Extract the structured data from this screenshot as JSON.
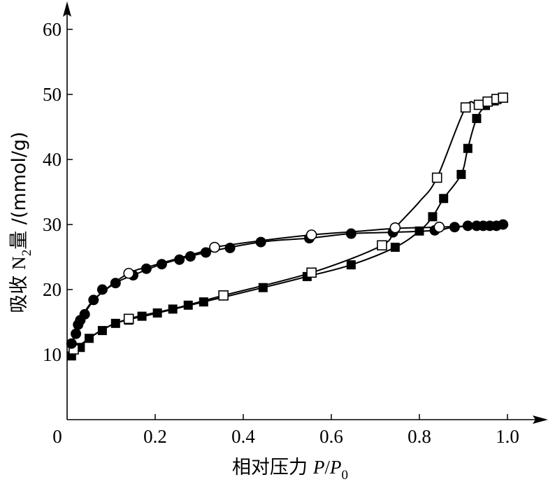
{
  "chart_data": {
    "type": "scatter",
    "x_axis": {
      "label_main": "相对压力",
      "label_math": "P",
      "label_sep": "/",
      "label_math2": "P",
      "label_sub": "0",
      "range": [
        0,
        1.08
      ],
      "ticks": [
        0,
        0.2,
        0.4,
        0.6,
        0.8,
        1.0
      ],
      "tick_labels": [
        "0",
        "0.2",
        "0.4",
        "0.6",
        "0.8",
        "1.0"
      ]
    },
    "y_axis": {
      "label_main": "吸收",
      "label_n": "N",
      "label_sub": "2",
      "label_rest": "量 /(mmol/g)",
      "range": [
        0,
        64
      ],
      "ticks": [
        10,
        20,
        30,
        40,
        50,
        60
      ],
      "tick_labels": [
        "10",
        "20",
        "30",
        "40",
        "50",
        "60"
      ]
    },
    "grid": false,
    "series": [
      {
        "marker": "filled-circle",
        "color": "#000000",
        "points": [
          [
            0.01,
            11.7
          ],
          [
            0.02,
            13.2
          ],
          [
            0.025,
            14.6
          ],
          [
            0.03,
            15.3
          ],
          [
            0.04,
            16.2
          ],
          [
            0.06,
            18.4
          ],
          [
            0.08,
            20.0
          ],
          [
            0.11,
            21.0
          ],
          [
            0.15,
            22.2
          ],
          [
            0.18,
            23.2
          ],
          [
            0.215,
            23.9
          ],
          [
            0.255,
            24.6
          ],
          [
            0.28,
            25.1
          ],
          [
            0.315,
            25.7
          ],
          [
            0.37,
            26.4
          ],
          [
            0.44,
            27.3
          ],
          [
            0.55,
            27.9
          ],
          [
            0.645,
            28.6
          ],
          [
            0.74,
            28.8
          ],
          [
            0.835,
            29.1
          ],
          [
            0.88,
            29.6
          ],
          [
            0.91,
            29.8
          ],
          [
            0.93,
            29.8
          ],
          [
            0.945,
            29.8
          ],
          [
            0.96,
            29.8
          ],
          [
            0.975,
            29.8
          ],
          [
            0.99,
            30.0
          ]
        ]
      },
      {
        "marker": "open-circle",
        "color": "#000000",
        "points": [
          [
            0.14,
            22.5
          ],
          [
            0.335,
            26.5
          ],
          [
            0.555,
            28.4
          ],
          [
            0.745,
            29.5
          ],
          [
            0.845,
            29.6
          ]
        ]
      },
      {
        "marker": "filled-square",
        "color": "#000000",
        "points": [
          [
            0.01,
            9.8
          ],
          [
            0.03,
            11.1
          ],
          [
            0.05,
            12.5
          ],
          [
            0.08,
            13.7
          ],
          [
            0.11,
            14.8
          ],
          [
            0.14,
            15.3
          ],
          [
            0.17,
            15.9
          ],
          [
            0.205,
            16.4
          ],
          [
            0.24,
            17.0
          ],
          [
            0.275,
            17.6
          ],
          [
            0.31,
            18.1
          ],
          [
            0.445,
            20.3
          ],
          [
            0.545,
            22.0
          ],
          [
            0.645,
            23.8
          ],
          [
            0.745,
            26.5
          ],
          [
            0.8,
            29.0
          ],
          [
            0.83,
            31.2
          ],
          [
            0.855,
            34.0
          ],
          [
            0.895,
            37.7
          ],
          [
            0.91,
            41.7
          ],
          [
            0.93,
            46.3
          ],
          [
            0.95,
            48.3
          ],
          [
            0.97,
            49.0
          ]
        ]
      },
      {
        "marker": "open-square",
        "color": "#000000",
        "points": [
          [
            0.015,
            10.8
          ],
          [
            0.14,
            15.5
          ],
          [
            0.355,
            19.1
          ],
          [
            0.555,
            22.6
          ],
          [
            0.715,
            26.8
          ],
          [
            0.84,
            37.2
          ],
          [
            0.905,
            48.0
          ],
          [
            0.935,
            48.4
          ],
          [
            0.955,
            48.9
          ],
          [
            0.975,
            49.3
          ],
          [
            0.99,
            49.5
          ]
        ]
      }
    ],
    "curves": [
      {
        "color": "#000000",
        "points": [
          [
            0.01,
            11.7
          ],
          [
            0.02,
            13.2
          ],
          [
            0.03,
            15.0
          ],
          [
            0.05,
            17.4
          ],
          [
            0.08,
            19.6
          ],
          [
            0.14,
            22.5
          ],
          [
            0.2,
            23.8
          ],
          [
            0.3,
            25.7
          ],
          [
            0.335,
            26.5
          ],
          [
            0.45,
            27.6
          ],
          [
            0.555,
            28.4
          ],
          [
            0.65,
            28.9
          ],
          [
            0.745,
            29.4
          ],
          [
            0.845,
            29.6
          ],
          [
            1.0,
            30.0
          ]
        ]
      },
      {
        "color": "#000000",
        "points": [
          [
            0.01,
            11.7
          ],
          [
            0.03,
            15.3
          ],
          [
            0.06,
            18.4
          ],
          [
            0.11,
            21.0
          ],
          [
            0.15,
            22.2
          ],
          [
            0.215,
            23.9
          ],
          [
            0.315,
            25.7
          ],
          [
            0.44,
            27.3
          ],
          [
            0.55,
            27.9
          ],
          [
            0.645,
            28.6
          ],
          [
            0.74,
            28.8
          ],
          [
            0.84,
            29.1
          ],
          [
            0.88,
            29.6
          ],
          [
            0.99,
            30.0
          ]
        ]
      },
      {
        "color": "#000000",
        "points": [
          [
            0.01,
            9.8
          ],
          [
            0.05,
            12.5
          ],
          [
            0.11,
            14.8
          ],
          [
            0.2,
            16.3
          ],
          [
            0.31,
            18.1
          ],
          [
            0.445,
            20.3
          ],
          [
            0.545,
            22.0
          ],
          [
            0.645,
            23.8
          ],
          [
            0.745,
            26.5
          ],
          [
            0.8,
            29.0
          ],
          [
            0.83,
            31.2
          ],
          [
            0.855,
            34.0
          ],
          [
            0.895,
            37.7
          ],
          [
            0.91,
            41.7
          ],
          [
            0.93,
            46.3
          ],
          [
            0.955,
            48.5
          ],
          [
            0.99,
            49.5
          ]
        ]
      },
      {
        "color": "#000000",
        "points": [
          [
            0.015,
            10.8
          ],
          [
            0.08,
            13.8
          ],
          [
            0.14,
            15.5
          ],
          [
            0.25,
            17.2
          ],
          [
            0.355,
            19.1
          ],
          [
            0.555,
            22.6
          ],
          [
            0.715,
            26.8
          ],
          [
            0.745,
            29.5
          ],
          [
            0.8,
            33.5
          ],
          [
            0.84,
            37.2
          ],
          [
            0.905,
            48.0
          ],
          [
            0.935,
            48.4
          ],
          [
            0.99,
            49.5
          ]
        ]
      }
    ]
  }
}
